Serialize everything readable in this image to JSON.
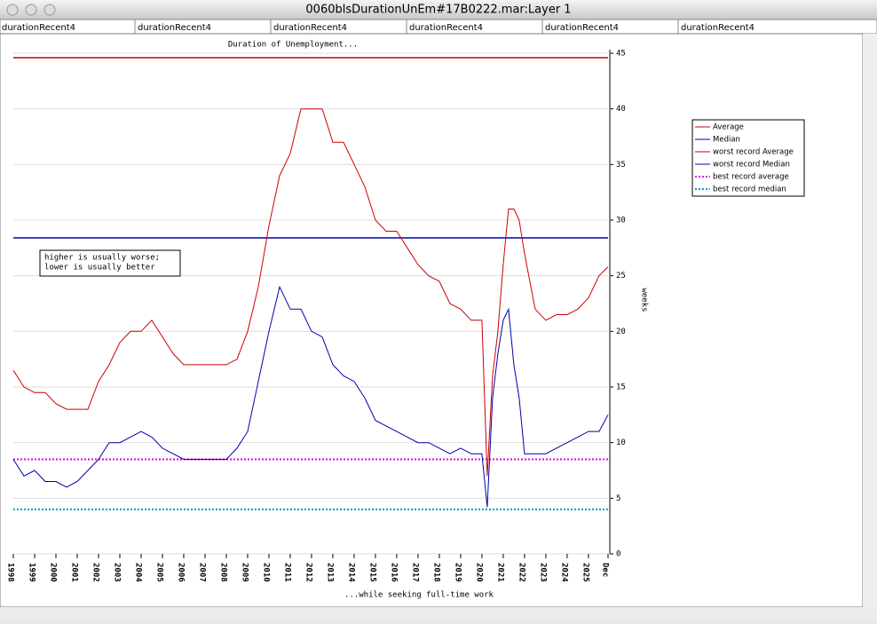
{
  "window": {
    "title": "0060blsDurationUnEm#17B0222.mar:Layer 1",
    "tabs": [
      "durationRecent4",
      "durationRecent4",
      "durationRecent4",
      "durationRecent4",
      "durationRecent4",
      "durationRecent4"
    ]
  },
  "chart_data": {
    "type": "line",
    "title": "Duration of Unemployment...",
    "x_label": "...while seeking full-time work",
    "y_label": "weeks",
    "annotation": [
      "higher is usually worse;",
      "lower is usually better"
    ],
    "x": [
      1998,
      1998.5,
      1999,
      1999.5,
      2000,
      2000.5,
      2001,
      2001.5,
      2002,
      2002.5,
      2003,
      2003.5,
      2004,
      2004.5,
      2005,
      2005.5,
      2006,
      2006.5,
      2007,
      2007.5,
      2008,
      2008.5,
      2009,
      2009.5,
      2010,
      2010.5,
      2011,
      2011.5,
      2012,
      2012.5,
      2013,
      2013.5,
      2014,
      2014.5,
      2015,
      2015.5,
      2016,
      2016.5,
      2017,
      2017.5,
      2018,
      2018.5,
      2019,
      2019.5,
      2020,
      2020.25,
      2020.5,
      2020.75,
      2021,
      2021.25,
      2021.5,
      2021.75,
      2022,
      2022.5,
      2023,
      2023.5,
      2024,
      2024.5,
      2025,
      2025.5,
      2025.92
    ],
    "series": [
      {
        "name": "Average",
        "color": "#cc0000",
        "values": [
          16.5,
          15,
          14.5,
          14.5,
          13.5,
          13,
          13,
          13,
          15.5,
          17,
          19,
          20,
          20,
          21,
          19.5,
          18,
          17,
          17,
          17,
          17,
          17,
          17.5,
          20,
          24,
          29.5,
          34,
          36,
          40,
          40,
          40,
          37,
          37,
          35,
          33,
          30,
          29,
          29,
          27.5,
          26,
          25,
          24.5,
          22.5,
          22,
          21,
          21,
          7,
          16,
          20,
          26,
          31,
          31,
          30,
          27,
          22,
          21,
          21.5,
          21.5,
          22,
          23,
          25,
          25.8
        ]
      },
      {
        "name": "Median",
        "color": "#0000aa",
        "values": [
          8.5,
          7,
          7.5,
          6.5,
          6.5,
          6,
          6.5,
          7.5,
          8.5,
          10,
          10,
          10.5,
          11,
          10.5,
          9.5,
          9,
          8.5,
          8.5,
          8.5,
          8.5,
          8.5,
          9.5,
          11,
          15.5,
          20,
          24,
          22,
          22,
          20,
          19.5,
          17,
          16,
          15.5,
          14,
          12,
          11.5,
          11,
          10.5,
          10,
          10,
          9.5,
          9,
          9.5,
          9,
          9,
          4.2,
          14,
          18,
          21,
          22,
          17,
          14,
          9,
          9,
          9,
          9.5,
          10,
          10.5,
          11,
          11,
          12.5
        ]
      }
    ],
    "reference_lines": [
      {
        "name": "worst record Average",
        "color": "#cc0000",
        "value": 44.6,
        "style": "solid"
      },
      {
        "name": "worst record Median",
        "color": "#0000aa",
        "value": 28.4,
        "style": "solid"
      },
      {
        "name": "best record average",
        "color": "#e000e0",
        "value": 8.5,
        "style": "dotted"
      },
      {
        "name": "best record median",
        "color": "#0099cc",
        "value": 4.0,
        "style": "dotted"
      }
    ],
    "xlim": [
      1998,
      2025.92
    ],
    "xticks": [
      1998,
      1999,
      2000,
      2001,
      2002,
      2003,
      2004,
      2005,
      2006,
      2007,
      2008,
      2009,
      2010,
      2011,
      2012,
      2013,
      2014,
      2015,
      2016,
      2017,
      2018,
      2019,
      2020,
      2021,
      2022,
      2023,
      2024,
      2025,
      {
        "value": 2025.92,
        "label": "Dec"
      }
    ],
    "ylim": [
      0,
      45
    ],
    "yticks": [
      0,
      5,
      10,
      15,
      20,
      25,
      30,
      35,
      40,
      45
    ],
    "grid": true
  }
}
